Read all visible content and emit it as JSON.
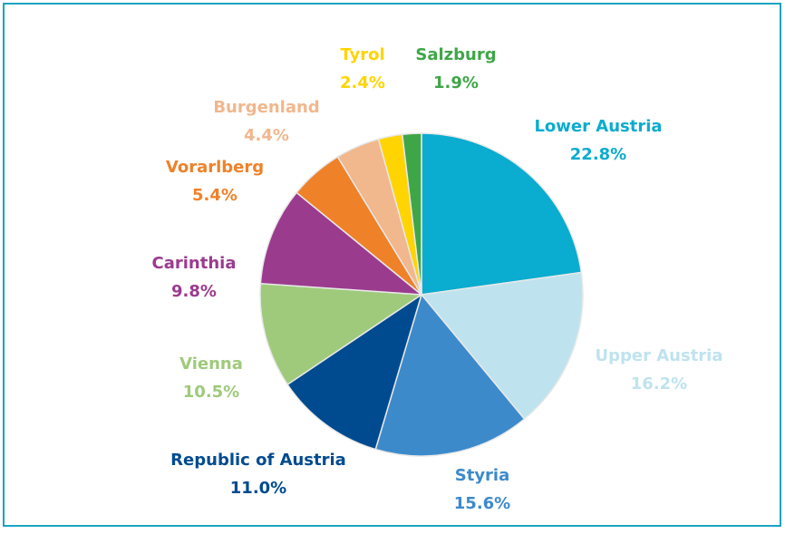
{
  "chart_data": {
    "type": "pie",
    "categories": [
      "Lower Austria",
      "Upper Austria",
      "Styria",
      "Republic of Austria",
      "Vienna",
      "Carinthia",
      "Vorarlberg",
      "Burgenland",
      "Tyrol",
      "Salzburg"
    ],
    "values": [
      22.8,
      16.2,
      15.6,
      11.0,
      10.5,
      9.8,
      5.4,
      4.4,
      2.4,
      1.9
    ],
    "value_labels": [
      "22.8%",
      "16.2%",
      "15.6%",
      "11.0%",
      "10.5%",
      "9.8%",
      "5.4%",
      "4.4%",
      "2.4%",
      "1.9%"
    ],
    "colors": [
      "#0aaccf",
      "#bfe3ee",
      "#3d8acb",
      "#004b8f",
      "#9fca7b",
      "#9b3b8e",
      "#ef8229",
      "#f1b78d",
      "#ffd400",
      "#3fa648"
    ]
  }
}
